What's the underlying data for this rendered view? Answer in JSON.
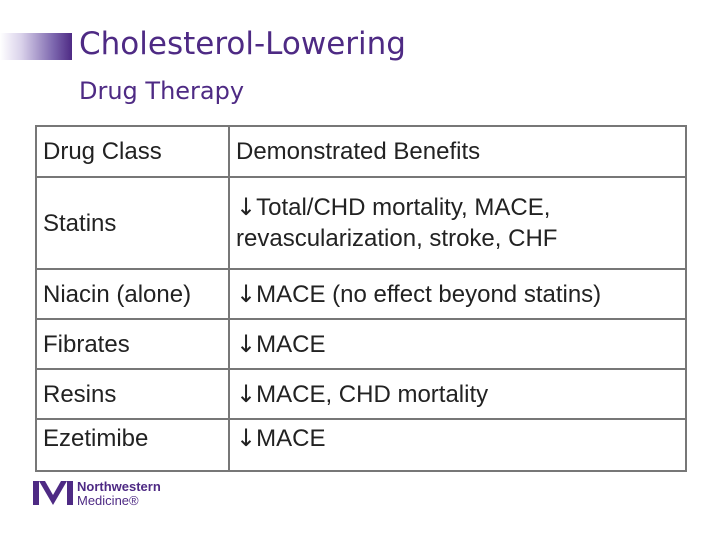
{
  "slide": {
    "title": "Cholesterol-Lowering",
    "subtitle": "Drug Therapy"
  },
  "table": {
    "headers": [
      "Drug Class",
      "Demonstrated Benefits"
    ],
    "rows": [
      {
        "drug": "Statins",
        "arrow": "↓",
        "benefit_line1": "Total/CHD mortality, MACE,",
        "benefit_line2": "revascularization, stroke, CHF"
      },
      {
        "drug": "Niacin (alone)",
        "arrow": "↓",
        "benefit": "MACE (no effect beyond statins)"
      },
      {
        "drug": "Fibrates",
        "arrow": "↓",
        "benefit": "MACE"
      },
      {
        "drug": "Resins",
        "arrow": "↓",
        "benefit": "MACE, CHD mortality"
      },
      {
        "drug": "Ezetimibe",
        "arrow": "↓",
        "benefit": "MACE"
      }
    ]
  },
  "logo": {
    "icon": "northwestern-medicine-logo-icon",
    "line1": "Northwestern",
    "line2": "Medicine®"
  },
  "colors": {
    "brand_purple": "#4e2a84",
    "border": "#777777",
    "text": "#222222"
  }
}
